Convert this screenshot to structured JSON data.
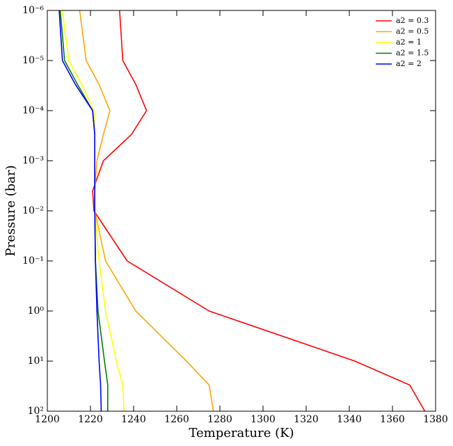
{
  "chart_data": {
    "type": "line",
    "xlabel": "Temperature (K)",
    "ylabel": "Pressure (bar)",
    "xlim": [
      1200,
      1380
    ],
    "xticks": [
      1200,
      1220,
      1240,
      1260,
      1280,
      1300,
      1320,
      1340,
      1360,
      1380
    ],
    "ylim": [
      1e-06,
      100
    ],
    "yscale": "log",
    "y_inverted": true,
    "yticks": [
      {
        "value": 1e-06,
        "label": "10⁻⁶"
      },
      {
        "value": 1e-05,
        "label": "10⁻⁵"
      },
      {
        "value": 0.0001,
        "label": "10⁻⁴"
      },
      {
        "value": 0.001,
        "label": "10⁻³"
      },
      {
        "value": 0.01,
        "label": "10⁻²"
      },
      {
        "value": 0.1,
        "label": "10⁻¹"
      },
      {
        "value": 1,
        "label": "10⁰"
      },
      {
        "value": 10,
        "label": "10¹"
      },
      {
        "value": 100,
        "label": "10²"
      }
    ],
    "legend": "upper right",
    "series": [
      {
        "name": "a2 = 0.3",
        "color": "#ff0000",
        "x": [
          1233.5,
          1235,
          1241,
          1246,
          1239,
          1226,
          1221,
          1221.6,
          1237,
          1275,
          1342.6,
          1368,
          1375
        ],
        "values": [
          1e-06,
          1e-05,
          3e-05,
          0.0001,
          0.0003,
          0.001,
          0.004,
          0.01,
          0.1,
          1,
          10,
          30,
          100
        ]
      },
      {
        "name": "a2 = 0.5",
        "color": "#ffa500",
        "x": [
          1215,
          1218,
          1224,
          1229,
          1226,
          1223,
          1222,
          1222,
          1227,
          1241,
          1264.5,
          1275,
          1277
        ],
        "values": [
          1e-06,
          1e-05,
          3e-05,
          0.0001,
          0.0003,
          0.001,
          0.004,
          0.01,
          0.1,
          1,
          10,
          30,
          100
        ]
      },
      {
        "name": "a2 = 1",
        "color": "#ffff00",
        "x": [
          1207,
          1210,
          1216,
          1221.6,
          1222,
          1222,
          1222,
          1222,
          1224,
          1227,
          1232,
          1235,
          1235.5
        ],
        "values": [
          1e-06,
          1e-05,
          3e-05,
          0.0001,
          0.0003,
          0.001,
          0.004,
          0.01,
          0.1,
          1,
          10,
          30,
          100
        ]
      },
      {
        "name": "a2 = 1.5",
        "color": "#008000",
        "x": [
          1206,
          1208,
          1214,
          1221,
          1222,
          1222,
          1222,
          1222,
          1222.3,
          1223.5,
          1226.5,
          1228,
          1228
        ],
        "values": [
          1e-06,
          1e-05,
          3e-05,
          0.0001,
          0.0003,
          0.001,
          0.004,
          0.01,
          0.1,
          1,
          10,
          30,
          100
        ]
      },
      {
        "name": "a2 = 2",
        "color": "#0000ff",
        "x": [
          1205.5,
          1207,
          1213,
          1221,
          1222,
          1222,
          1222,
          1222,
          1222.3,
          1223,
          1224,
          1224.7,
          1225
        ],
        "values": [
          1e-06,
          1e-05,
          3e-05,
          0.0001,
          0.0003,
          0.001,
          0.004,
          0.01,
          0.1,
          1,
          10,
          30,
          100
        ]
      }
    ]
  }
}
